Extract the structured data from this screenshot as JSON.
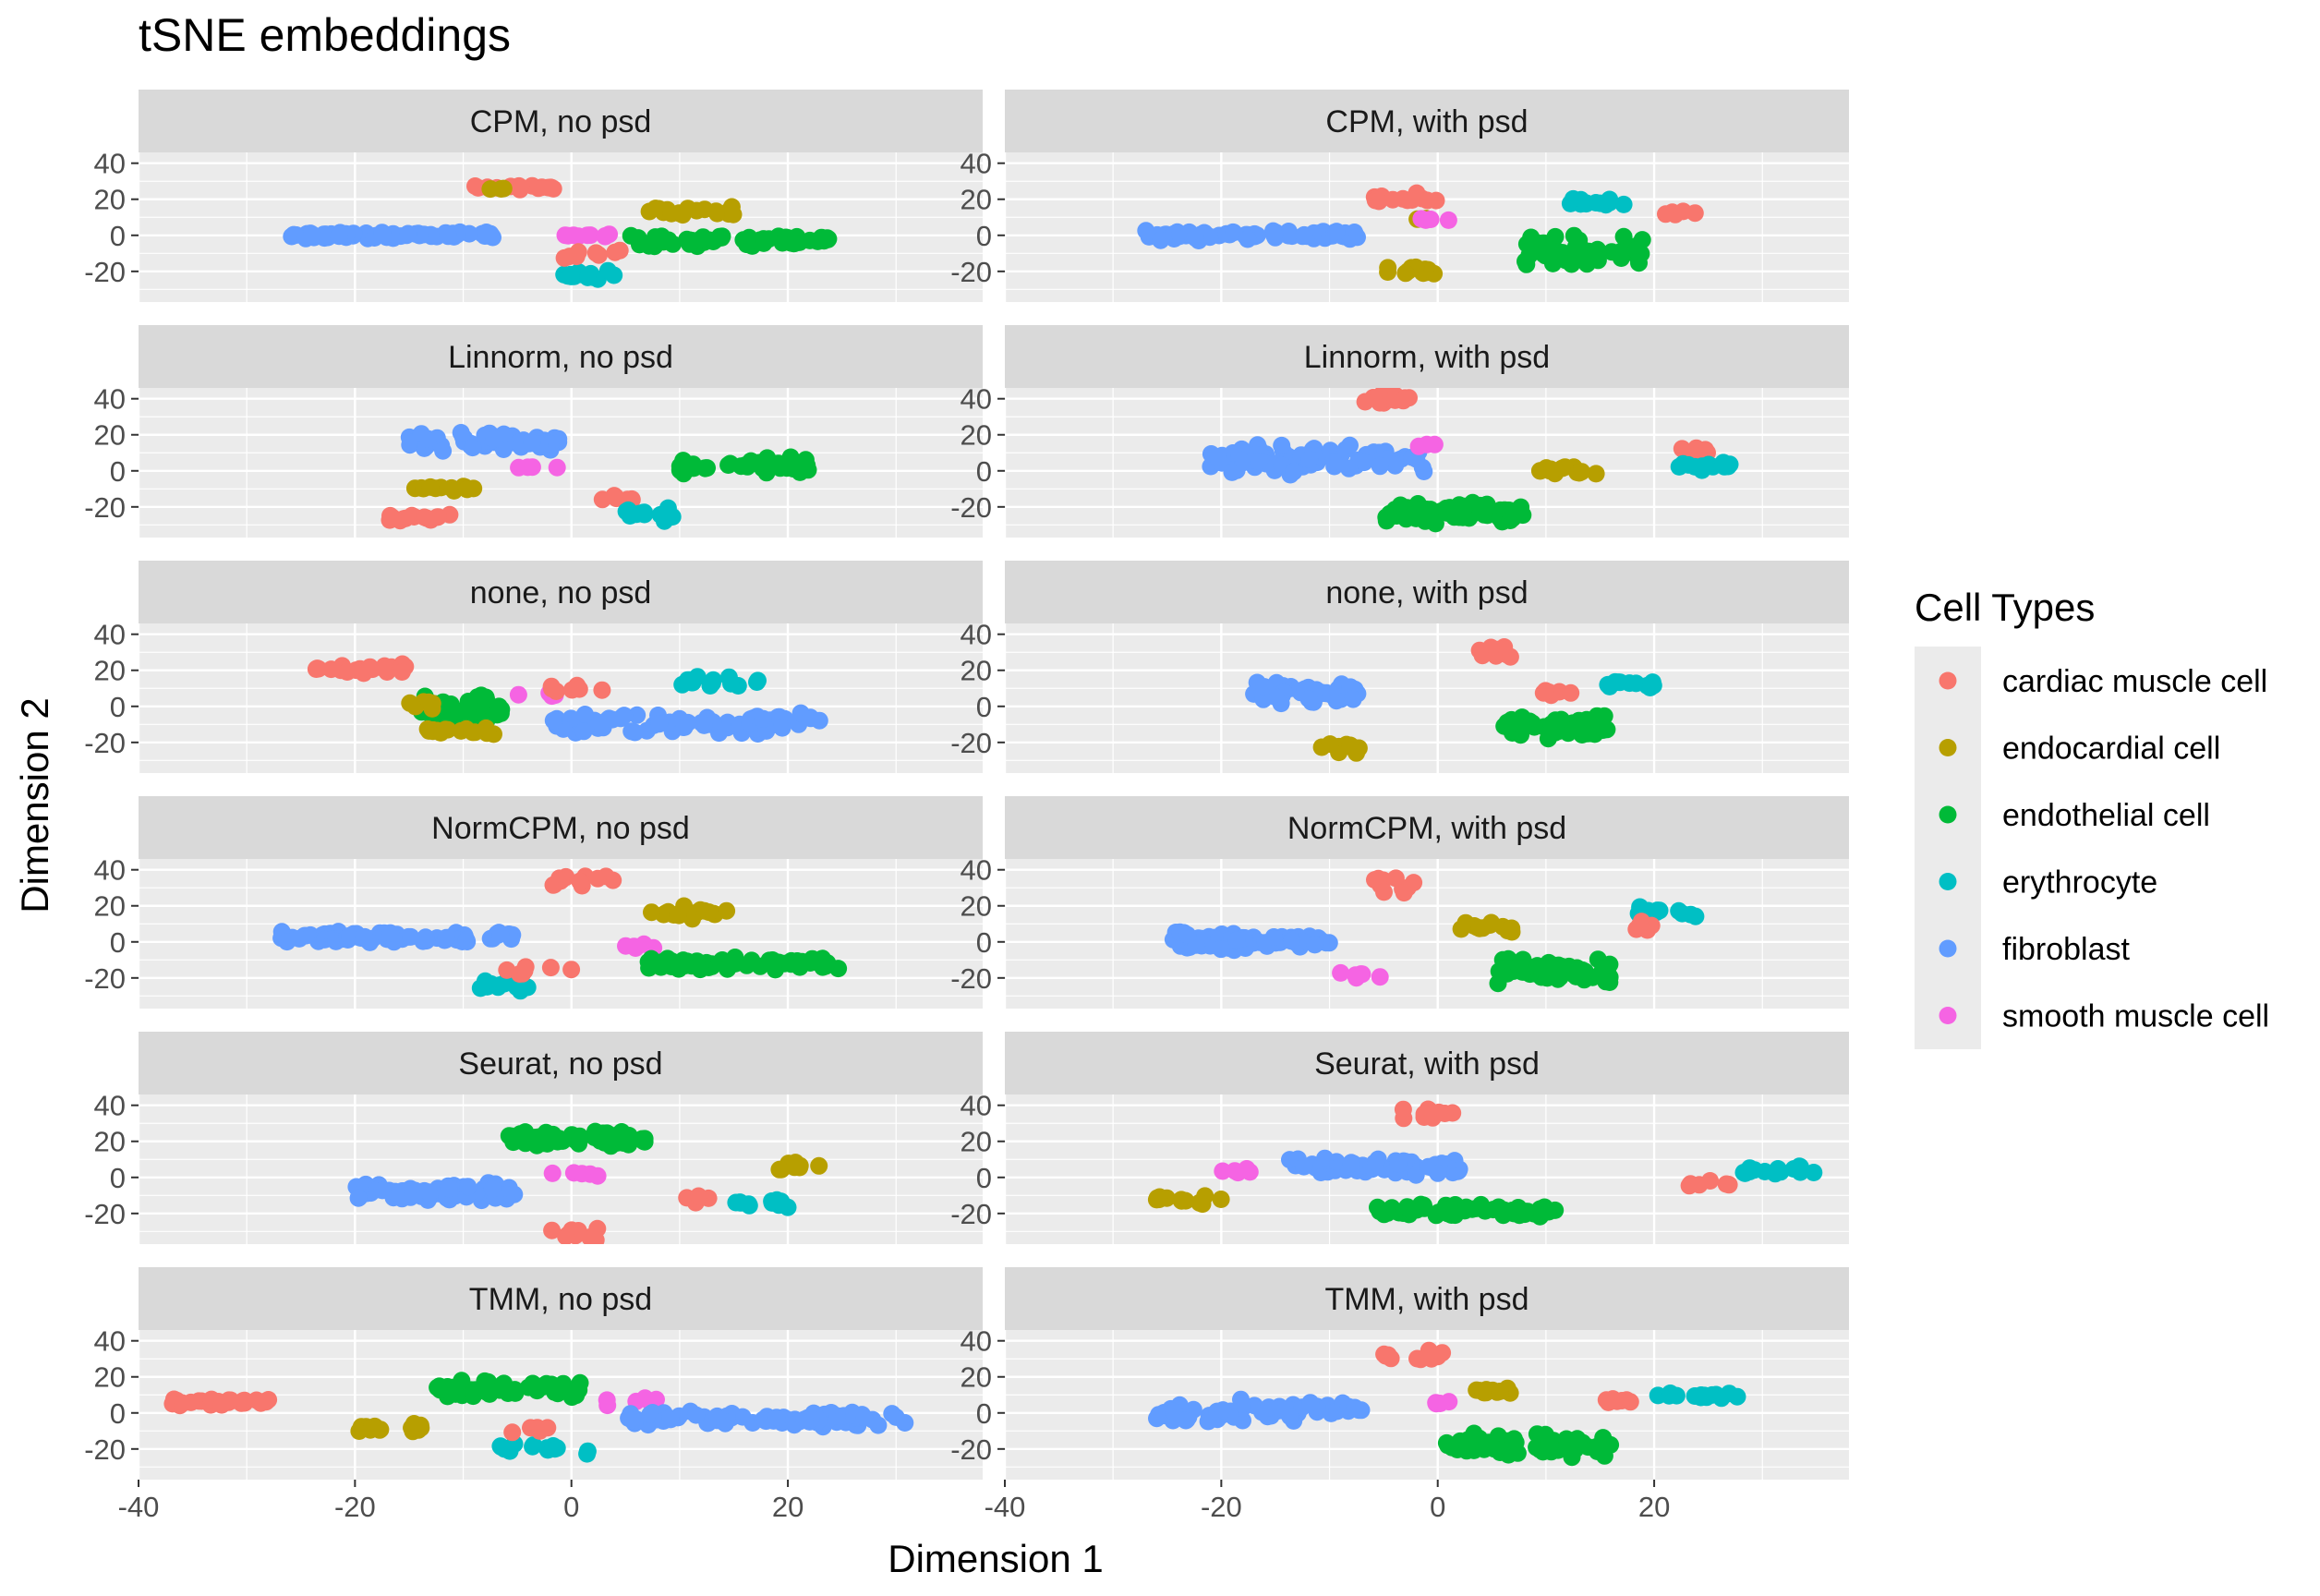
{
  "chart_data": {
    "type": "scatter",
    "title": "tSNE embeddings",
    "xlabel": "Dimension 1",
    "ylabel": "Dimension 2",
    "xlim": [
      -40,
      38
    ],
    "ylim": [
      -37,
      46
    ],
    "x_ticks": [
      -40,
      -20,
      0,
      20
    ],
    "y_ticks": [
      -20,
      0,
      20,
      40
    ],
    "grid": true,
    "legend_position": "right",
    "legend": {
      "title": "Cell Types",
      "entries": [
        {
          "name": "cardiac muscle cell",
          "color": "#F8766D"
        },
        {
          "name": "endocardial cell",
          "color": "#B79F00"
        },
        {
          "name": "endothelial cell",
          "color": "#00BA38"
        },
        {
          "name": "erythrocyte",
          "color": "#00BFC4"
        },
        {
          "name": "fibroblast",
          "color": "#619CFF"
        },
        {
          "name": "smooth muscle cell",
          "color": "#F564E3"
        }
      ]
    },
    "facets": [
      {
        "label": "CPM, no psd",
        "clusters": [
          {
            "cell": 4,
            "x": [
              -26,
              -7
            ],
            "y": [
              -2,
              2
            ],
            "n": 70
          },
          {
            "cell": 0,
            "x": [
              -9,
              -1
            ],
            "y": [
              25,
              28
            ],
            "n": 16
          },
          {
            "cell": 1,
            "x": [
              -8,
              -6
            ],
            "y": [
              25,
              27
            ],
            "n": 3
          },
          {
            "cell": 1,
            "x": [
              7,
              15
            ],
            "y": [
              11,
              16
            ],
            "n": 18
          },
          {
            "cell": 2,
            "x": [
              5,
              24
            ],
            "y": [
              -7,
              1
            ],
            "n": 60
          },
          {
            "cell": 5,
            "x": [
              -1,
              4
            ],
            "y": [
              -1,
              1
            ],
            "n": 9
          },
          {
            "cell": 3,
            "x": [
              -1,
              4
            ],
            "y": [
              -26,
              -19
            ],
            "n": 16
          },
          {
            "cell": 0,
            "x": [
              -2,
              5
            ],
            "y": [
              -14,
              -8
            ],
            "n": 8
          }
        ]
      },
      {
        "label": "CPM, with psd",
        "clusters": [
          {
            "cell": 4,
            "x": [
              -27,
              -7
            ],
            "y": [
              -3,
              3
            ],
            "n": 70
          },
          {
            "cell": 0,
            "x": [
              -6,
              0
            ],
            "y": [
              18,
              24
            ],
            "n": 12
          },
          {
            "cell": 1,
            "x": [
              -3,
              -1
            ],
            "y": [
              8,
              10
            ],
            "n": 3
          },
          {
            "cell": 5,
            "x": [
              -2,
              1
            ],
            "y": [
              8,
              10
            ],
            "n": 4
          },
          {
            "cell": 1,
            "x": [
              -5,
              0
            ],
            "y": [
              -24,
              -17
            ],
            "n": 12
          },
          {
            "cell": 3,
            "x": [
              12,
              19
            ],
            "y": [
              15,
              21
            ],
            "n": 14
          },
          {
            "cell": 0,
            "x": [
              21,
              24
            ],
            "y": [
              11,
              14
            ],
            "n": 5
          },
          {
            "cell": 2,
            "x": [
              8,
              19
            ],
            "y": [
              -18,
              1
            ],
            "n": 50
          }
        ]
      },
      {
        "label": "Linnorm, no psd",
        "clusters": [
          {
            "cell": 4,
            "x": [
              -15,
              -1
            ],
            "y": [
              10,
              22
            ],
            "n": 60
          },
          {
            "cell": 1,
            "x": [
              -15,
              -9
            ],
            "y": [
              -12,
              -7
            ],
            "n": 12
          },
          {
            "cell": 0,
            "x": [
              -17,
              -11
            ],
            "y": [
              -28,
              -24
            ],
            "n": 14
          },
          {
            "cell": 5,
            "x": [
              -5,
              -1
            ],
            "y": [
              1,
              3
            ],
            "n": 4
          },
          {
            "cell": 0,
            "x": [
              2,
              6
            ],
            "y": [
              -17,
              -13
            ],
            "n": 7
          },
          {
            "cell": 3,
            "x": [
              5,
              10
            ],
            "y": [
              -28,
              -20
            ],
            "n": 12
          },
          {
            "cell": 2,
            "x": [
              10,
              22
            ],
            "y": [
              -2,
              8
            ],
            "n": 55
          }
        ]
      },
      {
        "label": "Linnorm, with psd",
        "clusters": [
          {
            "cell": 4,
            "x": [
              -21,
              0
            ],
            "y": [
              -3,
              15
            ],
            "n": 80
          },
          {
            "cell": 5,
            "x": [
              -2,
              0
            ],
            "y": [
              12,
              16
            ],
            "n": 3
          },
          {
            "cell": 0,
            "x": [
              -7,
              -2
            ],
            "y": [
              37,
              43
            ],
            "n": 12
          },
          {
            "cell": 2,
            "x": [
              -5,
              8
            ],
            "y": [
              -30,
              -17
            ],
            "n": 80
          },
          {
            "cell": 1,
            "x": [
              9,
              15
            ],
            "y": [
              -3,
              3
            ],
            "n": 14
          },
          {
            "cell": 0,
            "x": [
              22,
              25
            ],
            "y": [
              8,
              13
            ],
            "n": 6
          },
          {
            "cell": 3,
            "x": [
              21,
              27
            ],
            "y": [
              0,
              5
            ],
            "n": 12
          }
        ]
      },
      {
        "label": "none, no psd",
        "clusters": [
          {
            "cell": 0,
            "x": [
              -24,
              -15
            ],
            "y": [
              18,
              24
            ],
            "n": 22
          },
          {
            "cell": 2,
            "x": [
              -14,
              -6
            ],
            "y": [
              -10,
              8
            ],
            "n": 45
          },
          {
            "cell": 1,
            "x": [
              -14,
              -6
            ],
            "y": [
              -16,
              -11
            ],
            "n": 18
          },
          {
            "cell": 1,
            "x": [
              -15,
              -12
            ],
            "y": [
              -2,
              4
            ],
            "n": 6
          },
          {
            "cell": 5,
            "x": [
              -6,
              -1
            ],
            "y": [
              4,
              8
            ],
            "n": 4
          },
          {
            "cell": 0,
            "x": [
              -2,
              3
            ],
            "y": [
              8,
              12
            ],
            "n": 8
          },
          {
            "cell": 4,
            "x": [
              -2,
              23
            ],
            "y": [
              -16,
              -2
            ],
            "n": 75
          },
          {
            "cell": 3,
            "x": [
              10,
              18
            ],
            "y": [
              11,
              17
            ],
            "n": 14
          }
        ]
      },
      {
        "label": "none, with psd",
        "clusters": [
          {
            "cell": 4,
            "x": [
              -17,
              -7
            ],
            "y": [
              -2,
              16
            ],
            "n": 45
          },
          {
            "cell": 1,
            "x": [
              -12,
              -7
            ],
            "y": [
              -26,
              -20
            ],
            "n": 10
          },
          {
            "cell": 0,
            "x": [
              3,
              7
            ],
            "y": [
              26,
              34
            ],
            "n": 10
          },
          {
            "cell": 0,
            "x": [
              9,
              13
            ],
            "y": [
              5,
              10
            ],
            "n": 6
          },
          {
            "cell": 2,
            "x": [
              6,
              16
            ],
            "y": [
              -19,
              -4
            ],
            "n": 60
          },
          {
            "cell": 3,
            "x": [
              15,
              22
            ],
            "y": [
              9,
              15
            ],
            "n": 12
          }
        ]
      },
      {
        "label": "NormCPM, no psd",
        "clusters": [
          {
            "cell": 4,
            "x": [
              -27,
              -4
            ],
            "y": [
              -1,
              6
            ],
            "n": 80
          },
          {
            "cell": 0,
            "x": [
              -3,
              4
            ],
            "y": [
              30,
              38
            ],
            "n": 14
          },
          {
            "cell": 1,
            "x": [
              7,
              15
            ],
            "y": [
              12,
              20
            ],
            "n": 18
          },
          {
            "cell": 5,
            "x": [
              5,
              8
            ],
            "y": [
              -4,
              0
            ],
            "n": 5
          },
          {
            "cell": 2,
            "x": [
              7,
              25
            ],
            "y": [
              -16,
              -8
            ],
            "n": 65
          },
          {
            "cell": 3,
            "x": [
              -9,
              -4
            ],
            "y": [
              -28,
              -20
            ],
            "n": 12
          },
          {
            "cell": 0,
            "x": [
              -6,
              0
            ],
            "y": [
              -19,
              -11
            ],
            "n": 7
          }
        ]
      },
      {
        "label": "NormCPM, with psd",
        "clusters": [
          {
            "cell": 4,
            "x": [
              -25,
              -10
            ],
            "y": [
              -5,
              6
            ],
            "n": 65
          },
          {
            "cell": 0,
            "x": [
              -6,
              -2
            ],
            "y": [
              26,
              36
            ],
            "n": 10
          },
          {
            "cell": 1,
            "x": [
              2,
              7
            ],
            "y": [
              5,
              12
            ],
            "n": 12
          },
          {
            "cell": 2,
            "x": [
              5,
              16
            ],
            "y": [
              -24,
              -8
            ],
            "n": 60
          },
          {
            "cell": 5,
            "x": [
              -9,
              -5
            ],
            "y": [
              -22,
              -16
            ],
            "n": 6
          },
          {
            "cell": 3,
            "x": [
              18,
              24
            ],
            "y": [
              14,
              20
            ],
            "n": 12
          },
          {
            "cell": 0,
            "x": [
              18,
              21
            ],
            "y": [
              6,
              12
            ],
            "n": 6
          }
        ]
      },
      {
        "label": "Seurat, no psd",
        "clusters": [
          {
            "cell": 4,
            "x": [
              -20,
              -5
            ],
            "y": [
              -14,
              -2
            ],
            "n": 70
          },
          {
            "cell": 2,
            "x": [
              -6,
              7
            ],
            "y": [
              17,
              26
            ],
            "n": 55
          },
          {
            "cell": 5,
            "x": [
              -2,
              3
            ],
            "y": [
              0,
              3
            ],
            "n": 5
          },
          {
            "cell": 0,
            "x": [
              -2,
              3
            ],
            "y": [
              -35,
              -28
            ],
            "n": 10
          },
          {
            "cell": 0,
            "x": [
              10,
              13
            ],
            "y": [
              -15,
              -9
            ],
            "n": 5
          },
          {
            "cell": 3,
            "x": [
              15,
              21
            ],
            "y": [
              -17,
              -10
            ],
            "n": 12
          },
          {
            "cell": 1,
            "x": [
              19,
              24
            ],
            "y": [
              3,
              10
            ],
            "n": 10
          }
        ]
      },
      {
        "label": "Seurat, with psd",
        "clusters": [
          {
            "cell": 4,
            "x": [
              -14,
              2
            ],
            "y": [
              0,
              12
            ],
            "n": 60
          },
          {
            "cell": 5,
            "x": [
              -20,
              -16
            ],
            "y": [
              2,
              5
            ],
            "n": 5
          },
          {
            "cell": 1,
            "x": [
              -26,
              -20
            ],
            "y": [
              -15,
              -9
            ],
            "n": 12
          },
          {
            "cell": 0,
            "x": [
              -4,
              2
            ],
            "y": [
              32,
              40
            ],
            "n": 10
          },
          {
            "cell": 2,
            "x": [
              -6,
              11
            ],
            "y": [
              -22,
              -14
            ],
            "n": 60
          },
          {
            "cell": 0,
            "x": [
              23,
              27
            ],
            "y": [
              -5,
              0
            ],
            "n": 7
          },
          {
            "cell": 3,
            "x": [
              28,
              35
            ],
            "y": [
              1,
              7
            ],
            "n": 14
          }
        ]
      },
      {
        "label": "TMM, no psd",
        "clusters": [
          {
            "cell": 0,
            "x": [
              -37,
              -28
            ],
            "y": [
              4,
              8
            ],
            "n": 28
          },
          {
            "cell": 2,
            "x": [
              -13,
              1
            ],
            "y": [
              8,
              18
            ],
            "n": 50
          },
          {
            "cell": 1,
            "x": [
              -20,
              -12
            ],
            "y": [
              -12,
              -5
            ],
            "n": 18
          },
          {
            "cell": 5,
            "x": [
              1,
              8
            ],
            "y": [
              4,
              9
            ],
            "n": 6
          },
          {
            "cell": 4,
            "x": [
              5,
              31
            ],
            "y": [
              -8,
              2
            ],
            "n": 80
          },
          {
            "cell": 3,
            "x": [
              -7,
              2
            ],
            "y": [
              -24,
              -16
            ],
            "n": 14
          },
          {
            "cell": 0,
            "x": [
              -6,
              -2
            ],
            "y": [
              -13,
              -7
            ],
            "n": 5
          }
        ]
      },
      {
        "label": "TMM, with psd",
        "clusters": [
          {
            "cell": 4,
            "x": [
              -26,
              -7
            ],
            "y": [
              -6,
              8
            ],
            "n": 70
          },
          {
            "cell": 0,
            "x": [
              -5,
              1
            ],
            "y": [
              28,
              35
            ],
            "n": 12
          },
          {
            "cell": 1,
            "x": [
              2,
              8
            ],
            "y": [
              10,
              15
            ],
            "n": 12
          },
          {
            "cell": 5,
            "x": [
              -2,
              2
            ],
            "y": [
              3,
              7
            ],
            "n": 4
          },
          {
            "cell": 2,
            "x": [
              0,
              16
            ],
            "y": [
              -26,
              -10
            ],
            "n": 60
          },
          {
            "cell": 0,
            "x": [
              15,
              18
            ],
            "y": [
              5,
              9
            ],
            "n": 7
          },
          {
            "cell": 3,
            "x": [
              20,
              28
            ],
            "y": [
              7,
              12
            ],
            "n": 14
          }
        ]
      }
    ]
  }
}
